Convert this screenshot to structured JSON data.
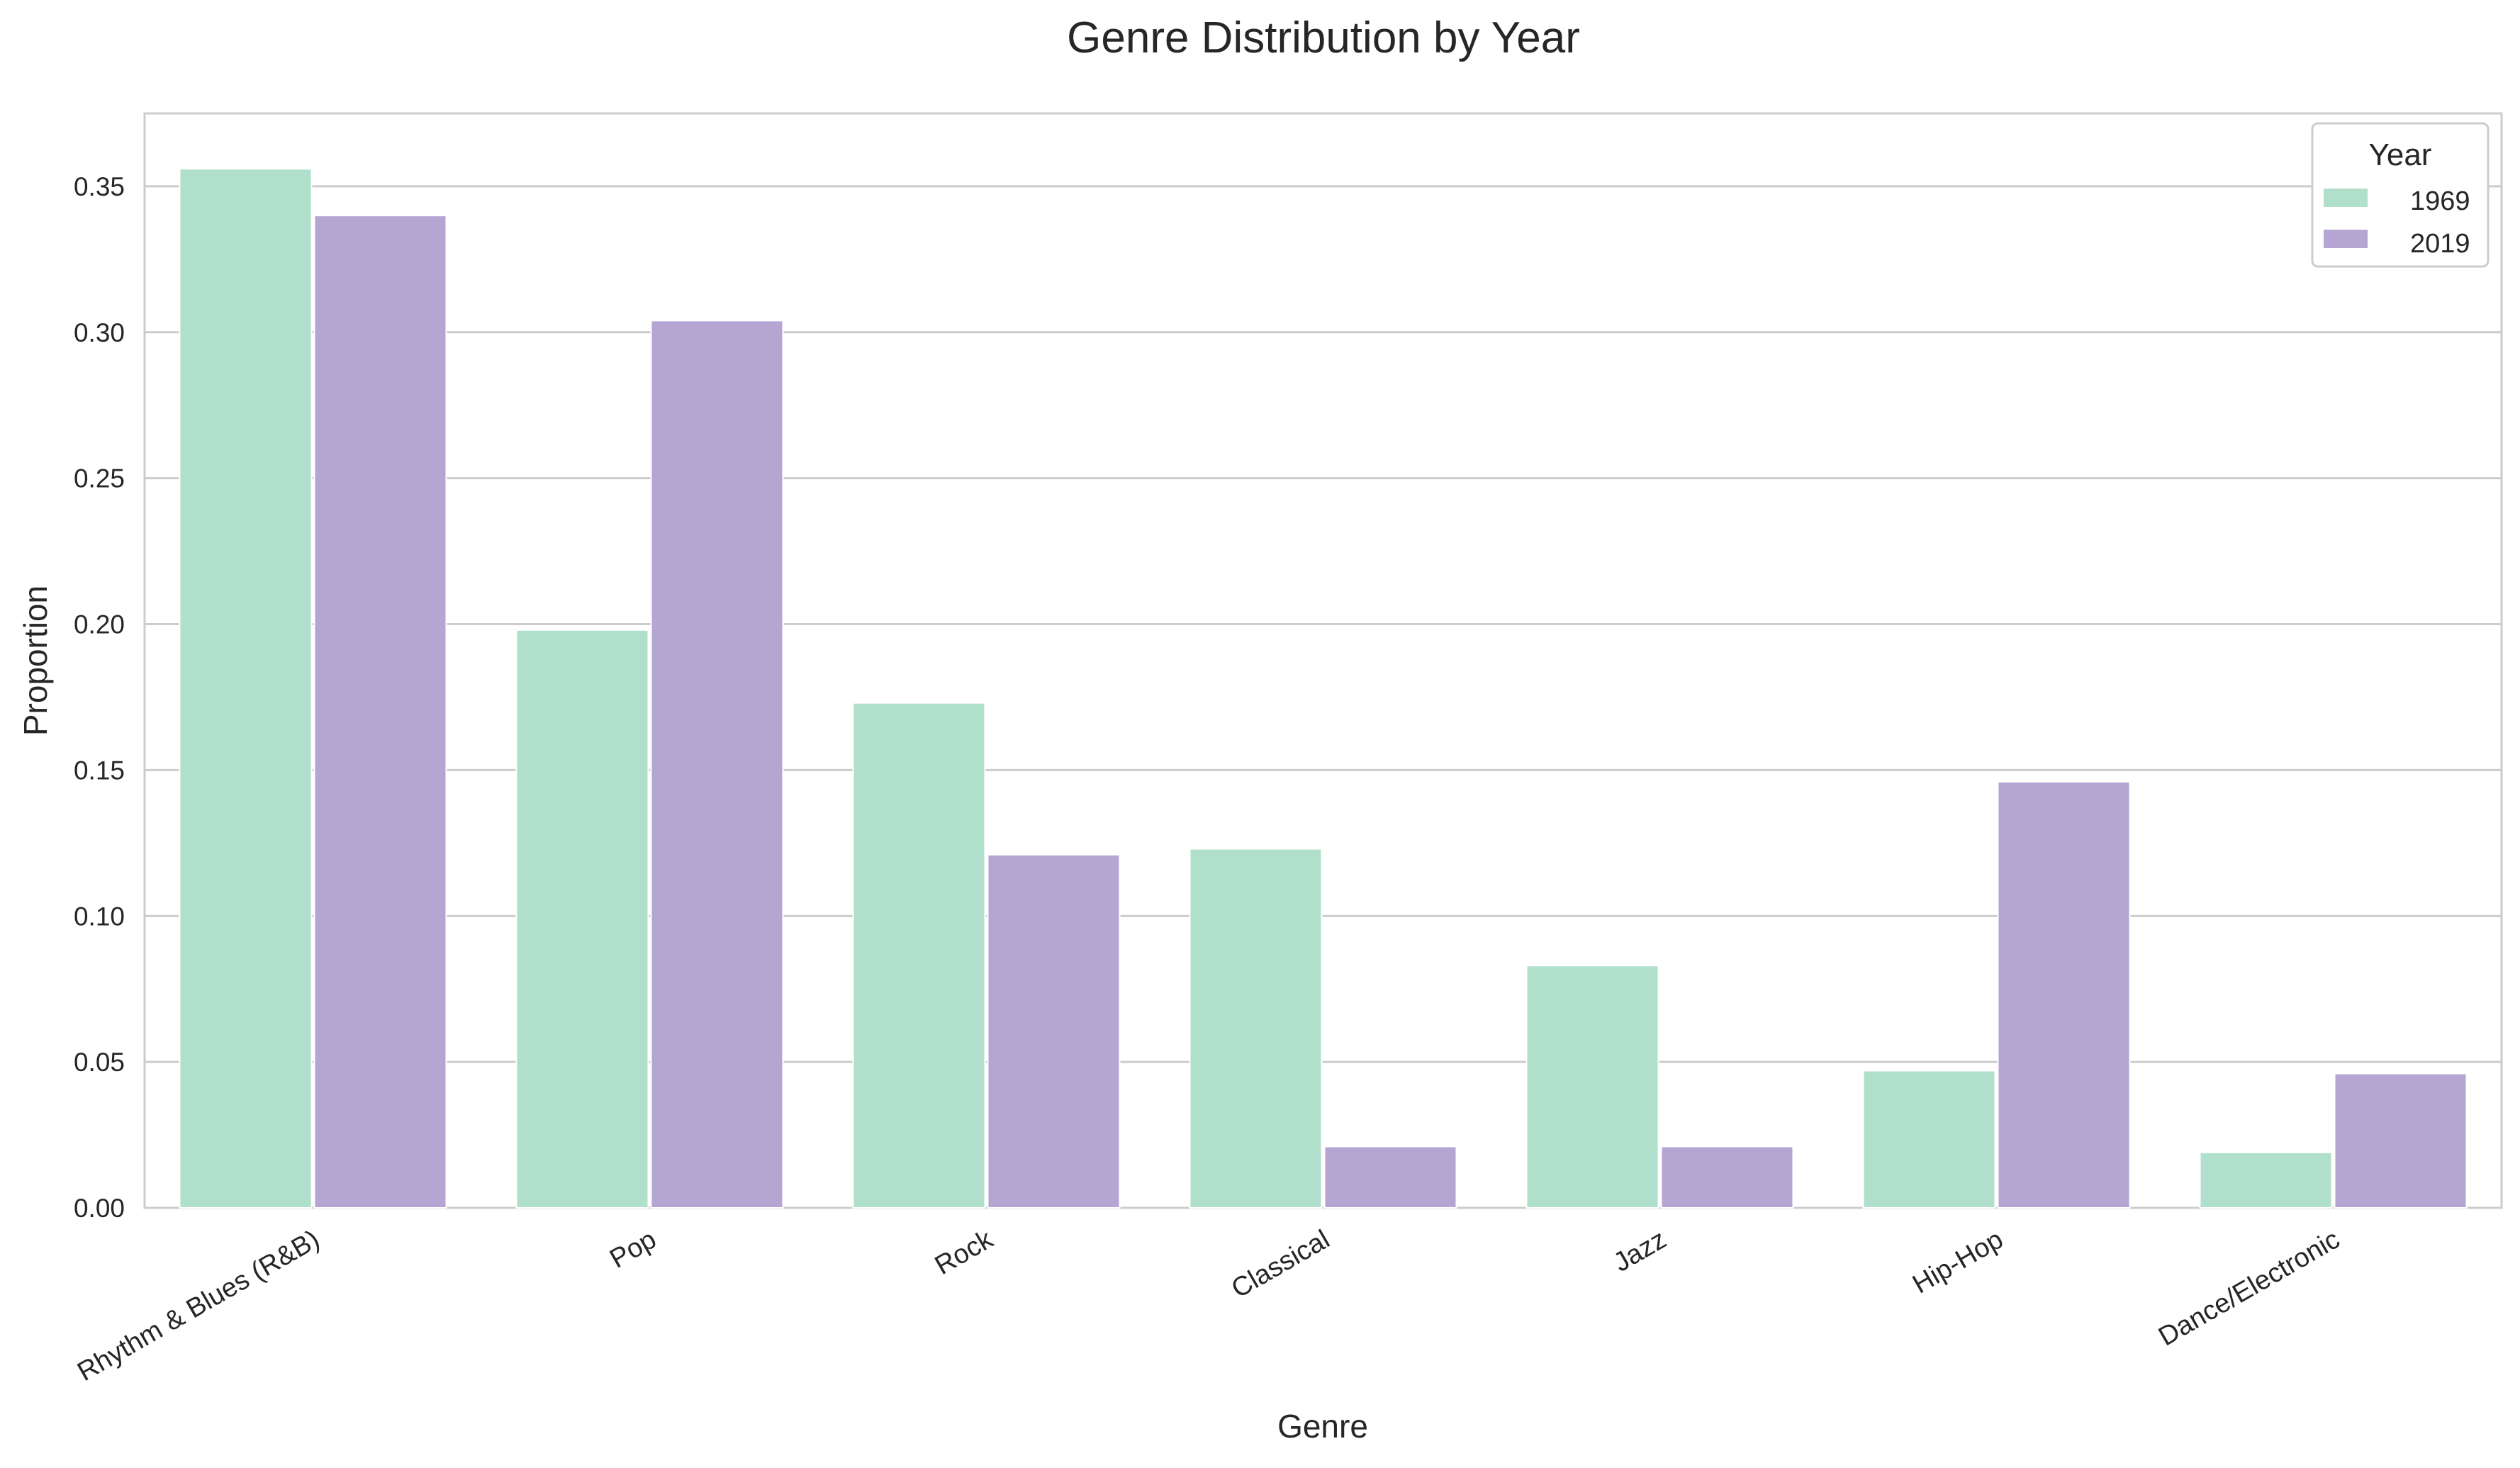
{
  "chart_data": {
    "type": "bar",
    "title": "Genre Distribution by Year",
    "xlabel": "Genre",
    "ylabel": "Proportion",
    "categories": [
      "Rhythm & Blues (R&B)",
      "Pop",
      "Rock",
      "Classical",
      "Jazz",
      "Hip-Hop",
      "Dance/Electronic"
    ],
    "series": [
      {
        "name": "1969",
        "color": "#b0dfcc",
        "values": [
          0.356,
          0.198,
          0.173,
          0.123,
          0.083,
          0.047,
          0.019
        ]
      },
      {
        "name": "2019",
        "color": "#b4a5d3",
        "values": [
          0.34,
          0.304,
          0.121,
          0.021,
          0.021,
          0.146,
          0.046
        ]
      }
    ],
    "ylim": [
      0,
      0.375
    ],
    "yticks": [
      "0.00",
      "0.05",
      "0.10",
      "0.15",
      "0.20",
      "0.25",
      "0.30",
      "0.35"
    ],
    "grid": "horizontal",
    "legend": {
      "title": "Year",
      "position": "top-right"
    }
  }
}
